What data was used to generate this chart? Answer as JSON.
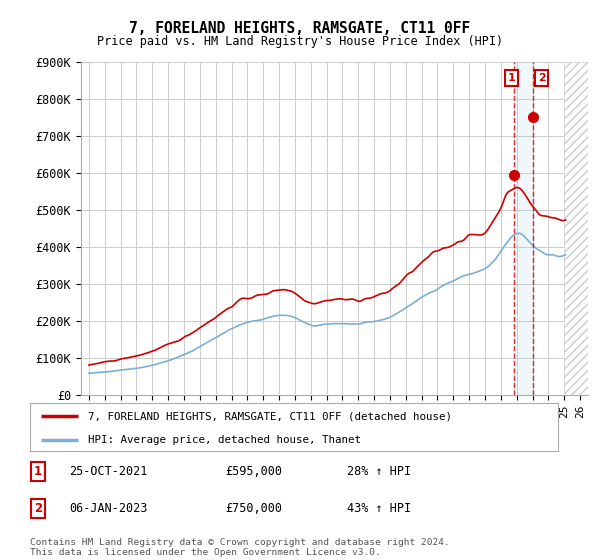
{
  "title": "7, FORELAND HEIGHTS, RAMSGATE, CT11 0FF",
  "subtitle": "Price paid vs. HM Land Registry's House Price Index (HPI)",
  "background_color": "#ffffff",
  "plot_bg_color": "#ffffff",
  "grid_color": "#cccccc",
  "hpi_color": "#7bafd4",
  "price_color": "#cc0000",
  "sale1_date_label": "25-OCT-2021",
  "sale1_value": 595000,
  "sale1_pct": "28%",
  "sale2_date_label": "06-JAN-2023",
  "sale2_value": 750000,
  "sale2_pct": "43%",
  "sale1_year": 2021.82,
  "sale2_year": 2023.02,
  "legend_line1": "7, FORELAND HEIGHTS, RAMSGATE, CT11 0FF (detached house)",
  "legend_line2": "HPI: Average price, detached house, Thanet",
  "footnote": "Contains HM Land Registry data © Crown copyright and database right 2024.\nThis data is licensed under the Open Government Licence v3.0.",
  "ylim": [
    0,
    900000
  ],
  "xlim": [
    1994.5,
    2026.5
  ],
  "yticks": [
    0,
    100000,
    200000,
    300000,
    400000,
    500000,
    600000,
    700000,
    800000,
    900000
  ],
  "ytick_labels": [
    "£0",
    "£100K",
    "£200K",
    "£300K",
    "£400K",
    "£500K",
    "£600K",
    "£700K",
    "£800K",
    "£900K"
  ],
  "xticks": [
    1995,
    1996,
    1997,
    1998,
    1999,
    2000,
    2001,
    2002,
    2003,
    2004,
    2005,
    2006,
    2007,
    2008,
    2009,
    2010,
    2011,
    2012,
    2013,
    2014,
    2015,
    2016,
    2017,
    2018,
    2019,
    2020,
    2021,
    2022,
    2023,
    2024,
    2025,
    2026
  ],
  "future_start": 2025.0,
  "hpi_base": [
    58000,
    62000,
    67000,
    72000,
    80000,
    92000,
    108000,
    130000,
    155000,
    178000,
    195000,
    205000,
    215000,
    208000,
    188000,
    190000,
    193000,
    191000,
    198000,
    210000,
    235000,
    262000,
    288000,
    308000,
    326000,
    340000,
    385000,
    435000,
    405000,
    380000,
    375000,
    390000,
    400000
  ],
  "price_base": [
    80000,
    88000,
    96000,
    105000,
    118000,
    135000,
    155000,
    182000,
    210000,
    240000,
    262000,
    270000,
    285000,
    275000,
    250000,
    255000,
    258000,
    256000,
    265000,
    282000,
    318000,
    355000,
    388000,
    408000,
    428000,
    440000,
    510000,
    560000,
    510000,
    480000,
    475000,
    490000,
    490000
  ]
}
